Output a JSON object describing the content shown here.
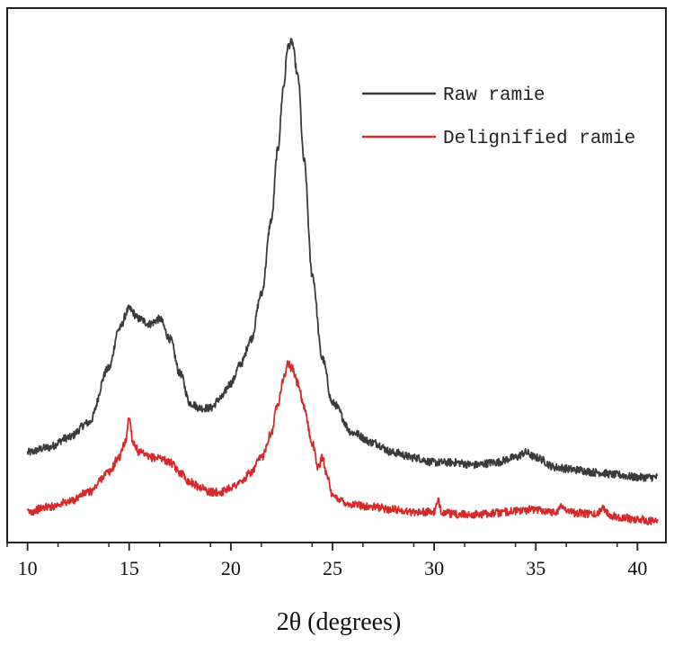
{
  "chart_data": {
    "type": "line",
    "title": "",
    "xlabel": "2θ (degrees)",
    "ylabel": "",
    "xlim": [
      9.0,
      41.4
    ],
    "ylim": [
      0,
      100
    ],
    "xticks": [
      10,
      15,
      20,
      25,
      30,
      35,
      40
    ],
    "yticks": [],
    "grid": false,
    "legend_position": "top-right",
    "series": [
      {
        "name": "Raw ramie",
        "color": "#3a3a3a",
        "x": [
          10,
          11,
          12,
          13,
          14,
          14.5,
          15,
          15.5,
          16,
          16.5,
          17,
          17.5,
          18,
          18.5,
          19,
          19.5,
          20,
          20.5,
          21,
          21.5,
          22,
          22.3,
          22.6,
          22.8,
          23,
          23.3,
          23.6,
          24,
          24.5,
          25,
          26,
          27,
          28,
          29,
          30,
          31,
          32,
          33,
          34,
          34.5,
          35,
          36,
          37,
          38,
          39,
          40,
          41
        ],
        "values": [
          14,
          15,
          17,
          20,
          31,
          39,
          43,
          41,
          40,
          41,
          37,
          30,
          24,
          23,
          23,
          25,
          28,
          32,
          37,
          46,
          61,
          75,
          88,
          96,
          97,
          90,
          73,
          50,
          33,
          24,
          18,
          16,
          14,
          13,
          12,
          12,
          11.5,
          12,
          13,
          14,
          13,
          11,
          10.5,
          10,
          9.5,
          9,
          9
        ]
      },
      {
        "name": "Delignified ramie",
        "color": "#d42a2a",
        "x": [
          10,
          11,
          12,
          13,
          14,
          14.5,
          14.8,
          15.0,
          15.2,
          15.5,
          16,
          16.5,
          17,
          17.5,
          18,
          18.5,
          19,
          19.5,
          20,
          20.5,
          21,
          21.5,
          22,
          22.3,
          22.6,
          22.8,
          23,
          23.3,
          23.6,
          24,
          24.3,
          24.5,
          24.7,
          25,
          26,
          27,
          28,
          29,
          30,
          30.2,
          30.4,
          31,
          32,
          33,
          34,
          35,
          36,
          36.2,
          37,
          38,
          38.3,
          38.6,
          39,
          40,
          41
        ],
        "values": [
          2,
          3,
          4,
          6,
          10,
          13,
          16,
          21,
          16,
          14,
          13,
          13,
          12,
          10,
          8,
          7,
          6,
          6,
          7,
          8,
          10,
          13,
          18,
          24,
          29,
          32,
          31,
          28,
          23,
          16,
          11,
          13,
          10,
          5,
          3.5,
          3,
          2.5,
          2,
          2,
          4,
          2,
          1.5,
          1.5,
          1.8,
          2.2,
          2.5,
          2.0,
          3,
          1.8,
          1.5,
          3,
          1.5,
          1,
          0.5,
          0
        ]
      }
    ]
  }
}
